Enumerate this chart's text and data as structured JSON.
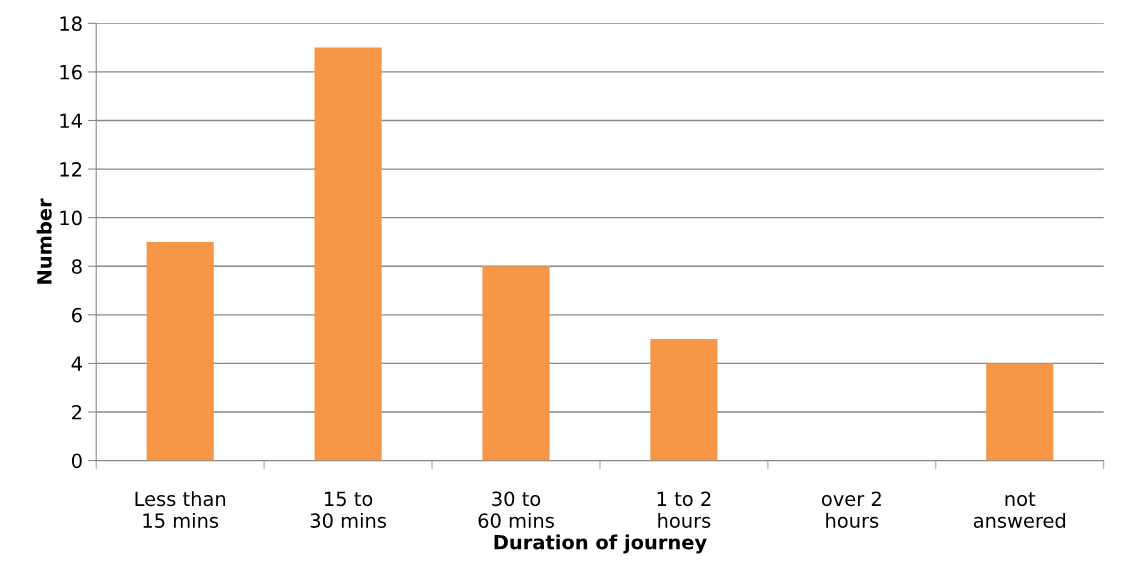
{
  "chart_data": {
    "type": "bar",
    "xlabel": "Duration of journey",
    "ylabel": "Number",
    "categories": [
      "Less than\n15 mins",
      "15 to\n30 mins",
      "30 to\n60 mins",
      "1 to 2\nhours",
      "over 2\nhours",
      "not\nanswered"
    ],
    "values": [
      9,
      17,
      8,
      5,
      0,
      4
    ],
    "color": "#f79646",
    "ylim": [
      0,
      18
    ],
    "yticks": [
      0,
      2,
      4,
      6,
      8,
      10,
      12,
      14,
      16,
      18
    ],
    "grid": "y",
    "legend": false
  }
}
